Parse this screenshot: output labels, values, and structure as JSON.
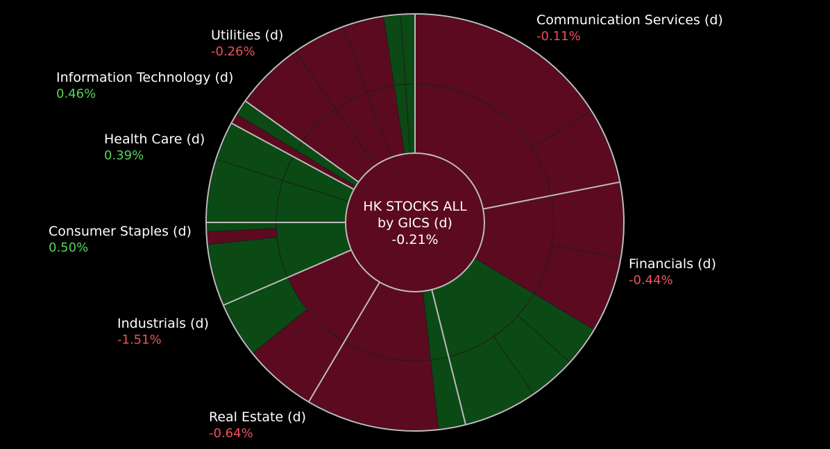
{
  "colors": {
    "background": "#000000",
    "negative_fill": "#5c0a1f",
    "positive_fill": "#0b4a14",
    "negative_text": "#f0505a",
    "positive_text": "#5ad25a",
    "sector_border": "#bdbdbd",
    "inner_border": "#1e1e1e"
  },
  "chart_data": {
    "type": "sunburst",
    "center": {
      "line1": "HK STOCKS ALL",
      "line2": "by GICS (d)",
      "value": "-0.21%"
    },
    "sectors": [
      {
        "name": "Communication Services (d)",
        "value": "-0.11%",
        "change": -0.11,
        "share": 21.9,
        "rings": [
          [
            {
              "share": 21.9,
              "up": false
            }
          ],
          [
            {
              "share": 16.0,
              "up": false
            },
            {
              "share": 5.9,
              "up": false
            }
          ]
        ]
      },
      {
        "name": "Financials (d)",
        "value": "-0.44%",
        "change": -0.44,
        "share": 24.2,
        "rings": [
          [
            {
              "share": 11.7,
              "up": false
            },
            {
              "share": 12.5,
              "up": true
            }
          ],
          [
            {
              "share": 5.8,
              "up": false
            },
            {
              "share": 5.9,
              "up": false
            },
            {
              "share": 3.1,
              "up": true
            },
            {
              "share": 3.7,
              "up": true
            },
            {
              "share": 5.7,
              "up": true
            }
          ]
        ]
      },
      {
        "name": "Real Estate (d)",
        "value": "-0.64%",
        "change": -0.64,
        "share": 12.4,
        "rings": [
          [
            {
              "share": 2.1,
              "up": true
            },
            {
              "share": 10.3,
              "up": false
            }
          ],
          [
            {
              "share": 2.1,
              "up": true
            },
            {
              "share": 10.3,
              "up": false
            }
          ]
        ]
      },
      {
        "name": "Industrials (d)",
        "value": "-1.51%",
        "change": -1.51,
        "share": 10.0,
        "rings": [
          [
            {
              "share": 10.0,
              "up": false
            }
          ],
          [
            {
              "share": 5.7,
              "up": false
            },
            {
              "share": 4.3,
              "up": true
            }
          ]
        ]
      },
      {
        "name": "Consumer Staples (d)",
        "value": "0.50%",
        "change": 0.5,
        "share": 6.5,
        "rings": [
          [
            {
              "share": 6.5,
              "up": true
            }
          ],
          [
            {
              "share": 4.8,
              "up": true
            },
            {
              "share": 1.0,
              "up": false
            },
            {
              "share": 0.7,
              "up": true
            }
          ]
        ]
      },
      {
        "name": "Health Care (d)",
        "value": "0.39%",
        "change": 0.39,
        "share": 7.9,
        "rings": [
          [
            {
              "share": 4.9,
              "up": true
            },
            {
              "share": 3.0,
              "up": true
            }
          ],
          [
            {
              "share": 4.9,
              "up": true
            },
            {
              "share": 3.0,
              "up": true
            }
          ]
        ]
      },
      {
        "name": "Information Technology (d)",
        "value": "0.46%",
        "change": 0.46,
        "share": 2.0,
        "rings": [
          [
            {
              "share": 0.8,
              "up": false
            },
            {
              "share": 1.2,
              "up": true
            }
          ],
          [
            {
              "share": 0.8,
              "up": false
            },
            {
              "share": 1.2,
              "up": true
            }
          ]
        ]
      },
      {
        "name": "Utilities (d)",
        "value": "-0.26%",
        "change": -0.26,
        "share": 15.1,
        "rings": [
          [
            {
              "share": 5.4,
              "up": false
            },
            {
              "share": 4.1,
              "up": false
            },
            {
              "share": 3.2,
              "up": false
            },
            {
              "share": 1.3,
              "up": true
            },
            {
              "share": 1.1,
              "up": true
            }
          ],
          [
            {
              "share": 5.4,
              "up": false
            },
            {
              "share": 4.1,
              "up": false
            },
            {
              "share": 3.2,
              "up": false
            },
            {
              "share": 1.3,
              "up": true
            },
            {
              "share": 1.1,
              "up": true
            }
          ]
        ]
      }
    ]
  }
}
